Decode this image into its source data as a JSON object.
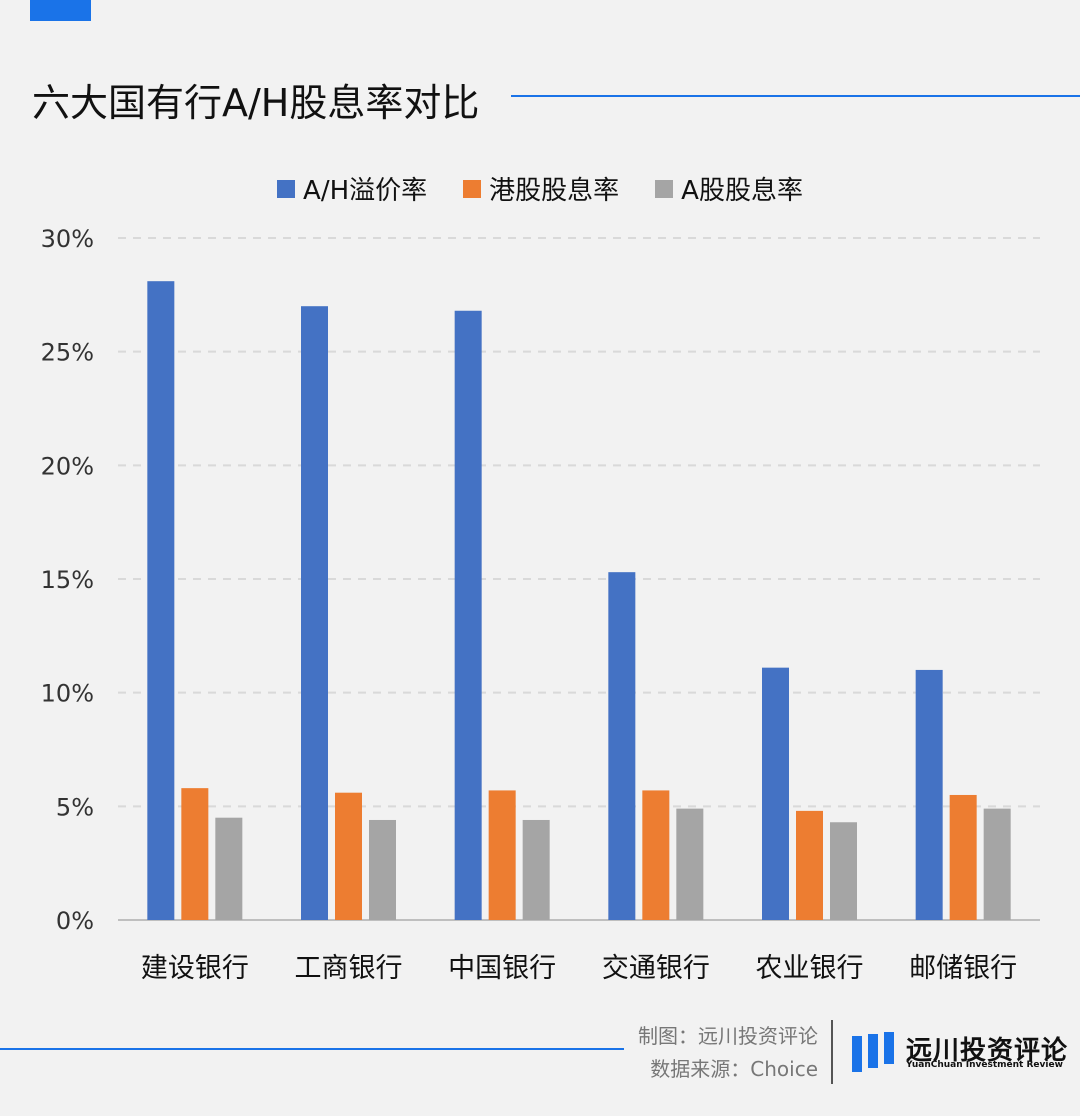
{
  "colors": {
    "accent": "#1a73e8",
    "series": [
      "#4472c4",
      "#ed7d31",
      "#a5a5a5"
    ],
    "grid": "#d9d9d9",
    "axis": "#bfbfbf"
  },
  "header": {
    "title": "六大国有行A/H股息率对比"
  },
  "chart_data": {
    "type": "bar",
    "categories": [
      "建设银行",
      "工商银行",
      "中国银行",
      "交通银行",
      "农业银行",
      "邮储银行"
    ],
    "series": [
      {
        "name": "A/H溢价率",
        "values": [
          28.1,
          27.0,
          26.8,
          15.3,
          11.1,
          11.0
        ]
      },
      {
        "name": "港股股息率",
        "values": [
          5.8,
          5.6,
          5.7,
          5.7,
          4.8,
          5.5
        ]
      },
      {
        "name": "A股股息率",
        "values": [
          4.5,
          4.4,
          4.4,
          4.9,
          4.3,
          4.9
        ]
      }
    ],
    "yticks": [
      "0%",
      "5%",
      "10%",
      "15%",
      "20%",
      "25%",
      "30%"
    ],
    "ylim": [
      0,
      30
    ],
    "grid": true,
    "legend": "top-center"
  },
  "footer": {
    "credit_maker": "制图：远川投资评论",
    "credit_source": "数据来源：Choice",
    "logo_cn": "远川投资评论",
    "logo_en": "YuanChuan Investment Review"
  }
}
